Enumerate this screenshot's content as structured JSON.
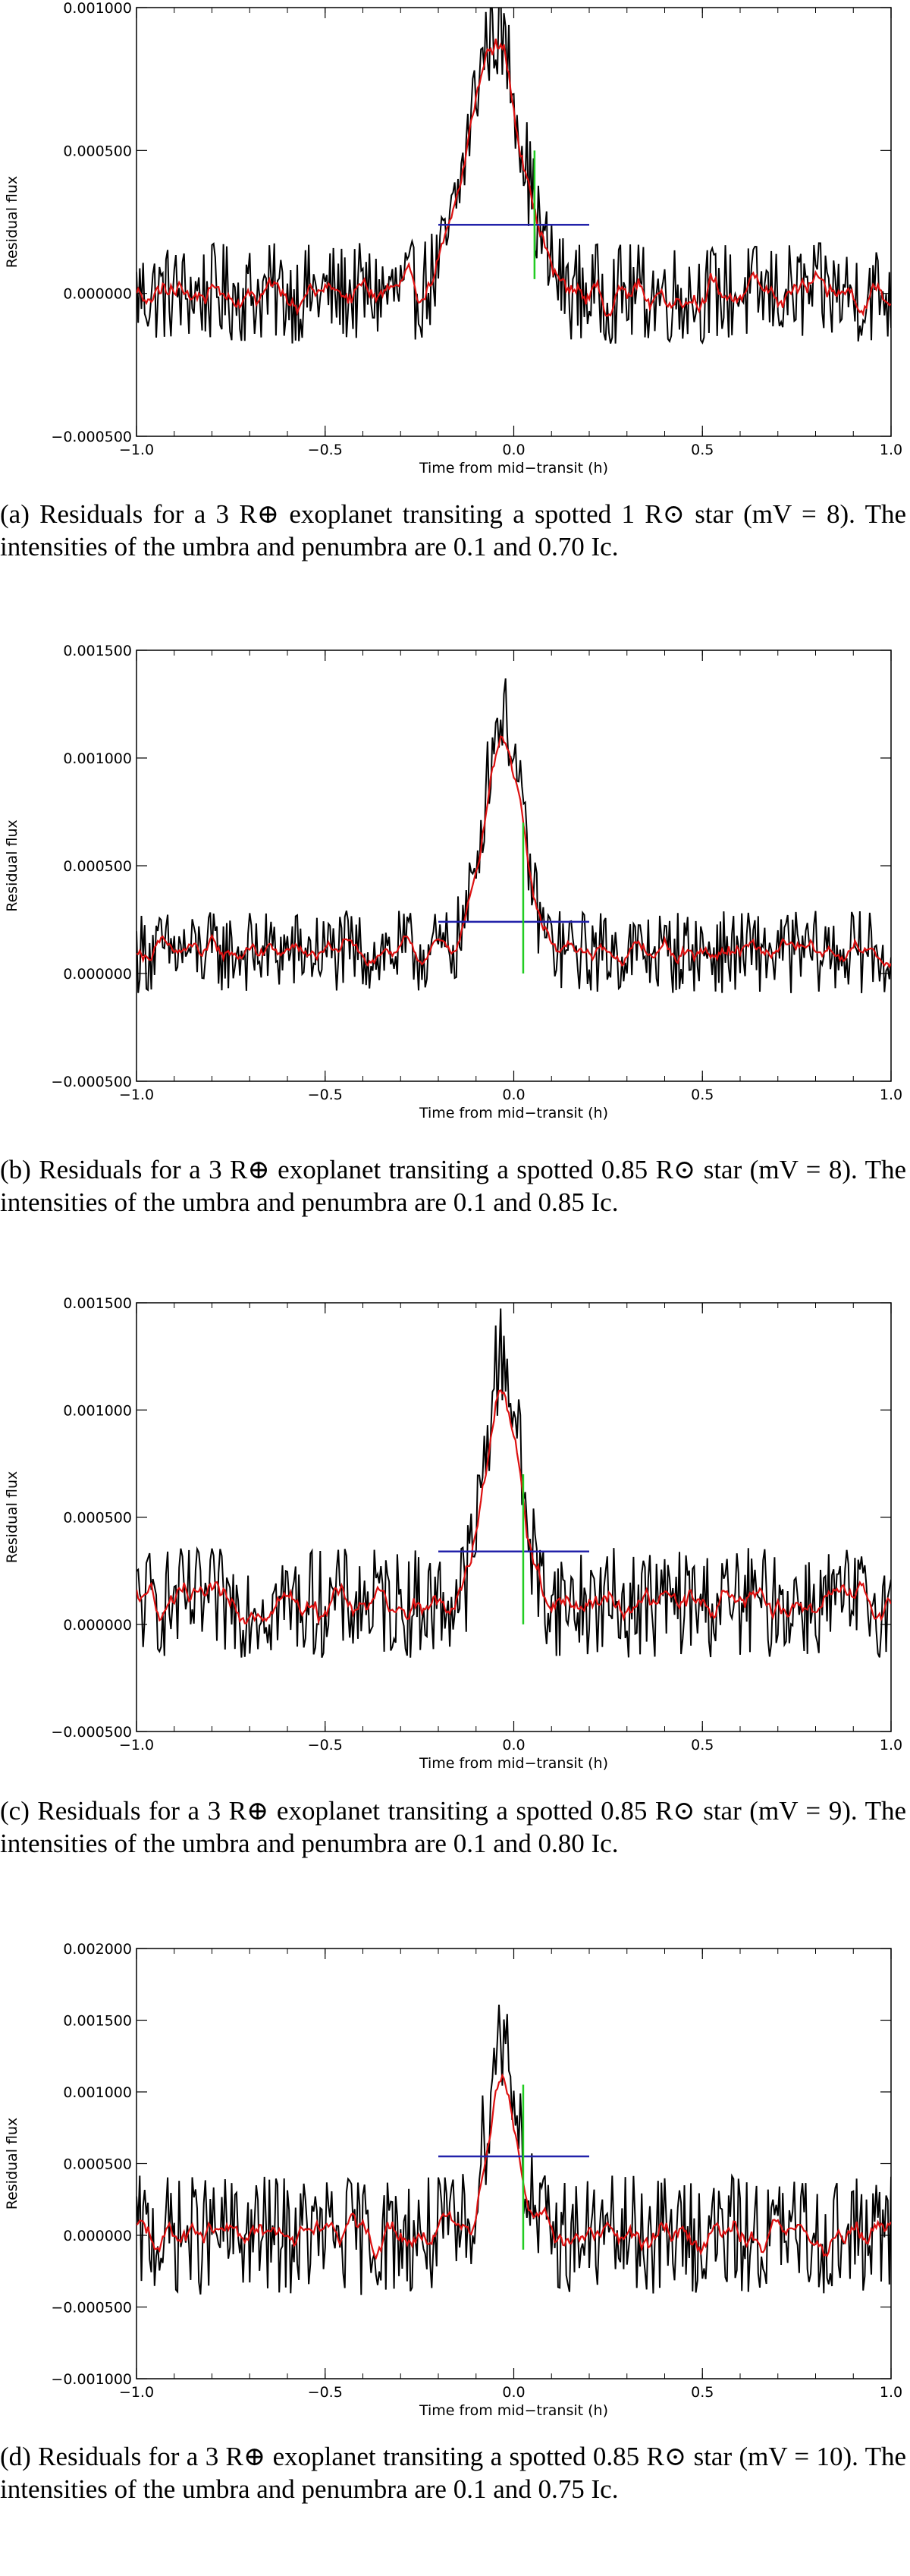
{
  "colors": {
    "data": "#000000",
    "smooth": "#dd1111",
    "hline": "#2222aa",
    "vline": "#22cc22",
    "axis": "#000000"
  },
  "chart_data": [
    {
      "type": "line",
      "panel_id": "a",
      "title": "",
      "xlabel": "Time from mid−transit (h)",
      "ylabel": "Residual flux",
      "xlim": [
        -1.0,
        1.0
      ],
      "ylim": [
        -0.0005,
        0.001
      ],
      "x_ticks": [
        -1.0,
        -0.5,
        0.0,
        0.5,
        1.0
      ],
      "x_tick_labels": [
        "−1.0",
        "−0.5",
        "0.0",
        "0.5",
        "1.0"
      ],
      "y_ticks": [
        -0.0005,
        0.0,
        0.0005,
        0.001
      ],
      "y_tick_labels": [
        "−0.000500",
        "0.000000",
        "0.000500",
        "0.001000"
      ],
      "series": [
        {
          "name": "Residual flux",
          "style": "noisy",
          "noise": 0.00011,
          "baseline": 0.0,
          "peak": {
            "center": -0.05,
            "width": 0.07,
            "height": 0.00092
          }
        },
        {
          "name": "Smoothed residual",
          "style": "smooth",
          "noise": 6e-05,
          "baseline": 0.0,
          "peak": {
            "center": -0.05,
            "width": 0.07,
            "height": 0.00088
          }
        }
      ],
      "annotations": [
        {
          "type": "hline",
          "y": 0.00024,
          "x0": -0.2,
          "x1": 0.2
        },
        {
          "type": "vline",
          "x": 0.055,
          "y0": 5e-05,
          "y1": 0.0005
        }
      ],
      "caption": "(a) Residuals for a 3 R⊕ exoplanet transiting a spotted 1 R⊙ star (mV = 8). The intensities of the umbra and penumbra are 0.1 and 0.70 Ic."
    },
    {
      "type": "line",
      "panel_id": "b",
      "title": "",
      "xlabel": "Time from mid−transit (h)",
      "ylabel": "Residual flux",
      "xlim": [
        -1.0,
        1.0
      ],
      "ylim": [
        -0.0005,
        0.0015
      ],
      "x_ticks": [
        -1.0,
        -0.5,
        0.0,
        0.5,
        1.0
      ],
      "x_tick_labels": [
        "−1.0",
        "−0.5",
        "0.0",
        "0.5",
        "1.0"
      ],
      "y_ticks": [
        -0.0005,
        0.0,
        0.0005,
        0.001,
        0.0015
      ],
      "y_tick_labels": [
        "−0.000500",
        "0.000000",
        "0.000500",
        "0.001000",
        "0.001500"
      ],
      "series": [
        {
          "name": "Residual flux",
          "style": "noisy",
          "noise": 0.00012,
          "baseline": 0.0001,
          "peak": {
            "center": -0.03,
            "width": 0.05,
            "height": 0.0011
          }
        },
        {
          "name": "Smoothed residual",
          "style": "smooth",
          "noise": 6e-05,
          "baseline": 0.0001,
          "peak": {
            "center": -0.03,
            "width": 0.05,
            "height": 0.001
          }
        }
      ],
      "annotations": [
        {
          "type": "hline",
          "y": 0.00024,
          "x0": -0.2,
          "x1": 0.2
        },
        {
          "type": "vline",
          "x": 0.025,
          "y0": 0.0,
          "y1": 0.0007
        }
      ],
      "caption": "(b) Residuals for a 3 R⊕ exoplanet transiting a spotted 0.85 R⊙ star (mV = 8). The intensities of the umbra and penumbra are 0.1 and 0.85 Ic."
    },
    {
      "type": "line",
      "panel_id": "c",
      "title": "",
      "xlabel": "Time from mid−transit (h)",
      "ylabel": "Residual flux",
      "xlim": [
        -1.0,
        1.0
      ],
      "ylim": [
        -0.0005,
        0.0015
      ],
      "x_ticks": [
        -1.0,
        -0.5,
        0.0,
        0.5,
        1.0
      ],
      "x_tick_labels": [
        "−1.0",
        "−0.5",
        "0.0",
        "0.5",
        "1.0"
      ],
      "y_ticks": [
        -0.0005,
        0.0,
        0.0005,
        0.001,
        0.0015
      ],
      "y_tick_labels": [
        "−0.000500",
        "0.000000",
        "0.000500",
        "0.001000",
        "0.001500"
      ],
      "series": [
        {
          "name": "Residual flux",
          "style": "noisy",
          "noise": 0.00016,
          "baseline": 0.0001,
          "peak": {
            "center": -0.03,
            "width": 0.045,
            "height": 0.00115
          }
        },
        {
          "name": "Smoothed residual",
          "style": "smooth",
          "noise": 8e-05,
          "baseline": 0.0001,
          "peak": {
            "center": -0.03,
            "width": 0.045,
            "height": 0.001
          }
        }
      ],
      "annotations": [
        {
          "type": "hline",
          "y": 0.00034,
          "x0": -0.2,
          "x1": 0.2
        },
        {
          "type": "vline",
          "x": 0.025,
          "y0": 0.0,
          "y1": 0.0007
        }
      ],
      "caption": "(c) Residuals for a 3 R⊕ exoplanet transiting a spotted 0.85 R⊙ star (mV = 9). The intensities of the umbra and penumbra are 0.1 and 0.80 Ic."
    },
    {
      "type": "line",
      "panel_id": "d",
      "title": "",
      "xlabel": "Time from mid−transit (h)",
      "ylabel": "Residual flux",
      "xlim": [
        -1.0,
        1.0
      ],
      "ylim": [
        -0.001,
        0.002
      ],
      "x_ticks": [
        -1.0,
        -0.5,
        0.0,
        0.5,
        1.0
      ],
      "x_tick_labels": [
        "−1.0",
        "−0.5",
        "0.0",
        "0.5",
        "1.0"
      ],
      "y_ticks": [
        -0.001,
        -0.0005,
        0.0,
        0.0005,
        0.001,
        0.0015,
        0.002
      ],
      "y_tick_labels": [
        "−0.001000",
        "−0.000500",
        "0.000000",
        "0.000500",
        "0.001000",
        "0.001500",
        "0.002000"
      ],
      "series": [
        {
          "name": "Residual flux",
          "style": "noisy",
          "noise": 0.00026,
          "baseline": 0.0,
          "peak": {
            "center": -0.03,
            "width": 0.04,
            "height": 0.0014
          }
        },
        {
          "name": "Smoothed residual",
          "style": "smooth",
          "noise": 0.00012,
          "baseline": 0.0,
          "peak": {
            "center": -0.03,
            "width": 0.04,
            "height": 0.0011
          }
        }
      ],
      "annotations": [
        {
          "type": "hline",
          "y": 0.00055,
          "x0": -0.2,
          "x1": 0.2
        },
        {
          "type": "vline",
          "x": 0.025,
          "y0": -0.0001,
          "y1": 0.00105
        }
      ],
      "caption": "(d) Residuals for a 3 R⊕ exoplanet transiting a spotted 0.85 R⊙ star (mV = 10). The intensities of the umbra and penumbra are 0.1 and 0.75 Ic."
    }
  ]
}
